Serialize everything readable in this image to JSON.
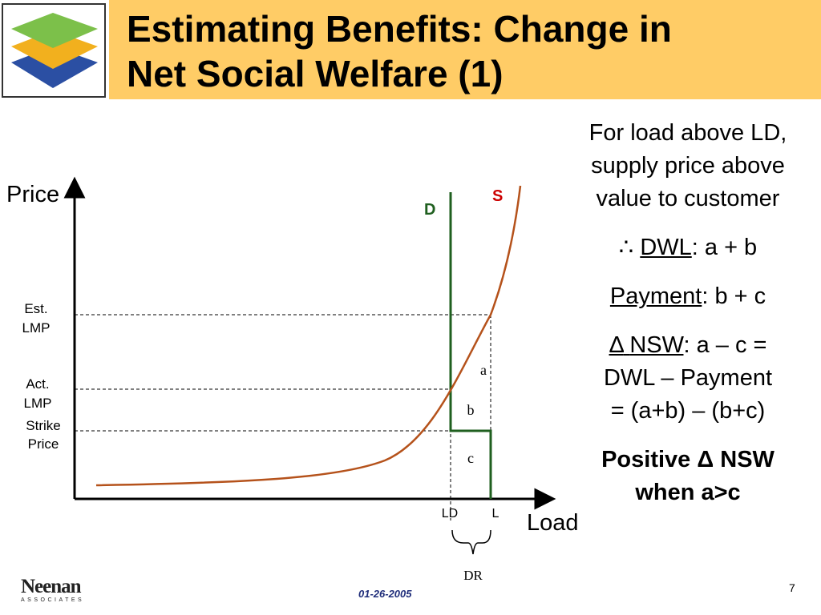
{
  "title": {
    "line1": "Estimating Benefits: Change in",
    "line2": "Net Social Welfare (1)"
  },
  "colors": {
    "title_band": "#FFCC66",
    "demand": "#1F5F1F",
    "supply": "#B5521B",
    "s_label": "#CC0000",
    "footer_date": "#1F2D7A"
  },
  "logo": {
    "icon": "stacked-layers-icon"
  },
  "diagram": {
    "y_axis_label": "Price",
    "x_axis_label": "Load",
    "demand_label": "D",
    "supply_label": "S",
    "est_lmp": [
      "Est.",
      "LMP"
    ],
    "act_lmp": [
      "Act.",
      "LMP"
    ],
    "strike_price": [
      "Strike",
      "Price"
    ],
    "area_a": "a",
    "area_b": "b",
    "area_c": "c",
    "tick_ld": "LD",
    "tick_l": "L",
    "bracket_label": "DR"
  },
  "side": {
    "p1": "For load above LD, supply price above value to customer",
    "therefore": "∴",
    "dwl_term": "DWL",
    "dwl_value": ": a + b",
    "payment_term": "Payment",
    "payment_value": ": b + c",
    "delta": "Δ",
    "nsw_term": "NSW",
    "nsw_line1_rest": ": a – c =",
    "nsw_line2": "DWL – Payment",
    "nsw_line3": "= (a+b) – (b+c)",
    "conclusion_line1": "Positive Δ NSW",
    "conclusion_line2": "when a>c"
  },
  "footer": {
    "brand": "Neenan",
    "brand_sub": "ASSOCIATES",
    "date": "01-26-2005",
    "page": "7"
  }
}
